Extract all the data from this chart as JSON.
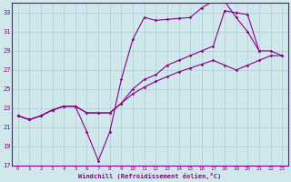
{
  "bg_color": "#d0e8ec",
  "grid_color": "#aacdd4",
  "line_color": "#880088",
  "xlabel": "Windchill (Refroidissement éolien,°C)",
  "xlim": [
    -0.5,
    23.5
  ],
  "ylim": [
    17,
    34
  ],
  "yticks": [
    17,
    19,
    21,
    23,
    25,
    27,
    29,
    31,
    33
  ],
  "xticks": [
    0,
    1,
    2,
    3,
    4,
    5,
    6,
    7,
    8,
    9,
    10,
    11,
    12,
    13,
    14,
    15,
    16,
    17,
    18,
    19,
    20,
    21,
    22,
    23
  ],
  "line1_y": [
    22.2,
    21.8,
    22.2,
    22.8,
    23.2,
    23.2,
    20.5,
    17.5,
    20.5,
    26.0,
    30.2,
    32.5,
    32.2,
    32.3,
    32.4,
    32.5,
    33.5,
    34.2,
    34.2,
    32.5,
    31.0,
    29.0
  ],
  "line2_y": [
    22.2,
    21.8,
    22.2,
    22.8,
    23.2,
    23.2,
    22.5,
    22.5,
    22.5,
    23.5,
    25.0,
    26.0,
    26.5,
    27.5,
    28.0,
    28.5,
    29.0,
    29.5,
    33.2,
    33.0,
    32.8,
    29.0,
    29.0,
    28.5
  ],
  "line3_y": [
    22.2,
    21.8,
    22.2,
    22.8,
    23.2,
    23.2,
    22.5,
    22.5,
    22.5,
    23.5,
    24.5,
    25.2,
    25.8,
    26.3,
    26.8,
    27.2,
    27.6,
    28.0,
    27.5,
    27.0,
    27.5,
    28.0,
    28.5,
    28.5
  ]
}
